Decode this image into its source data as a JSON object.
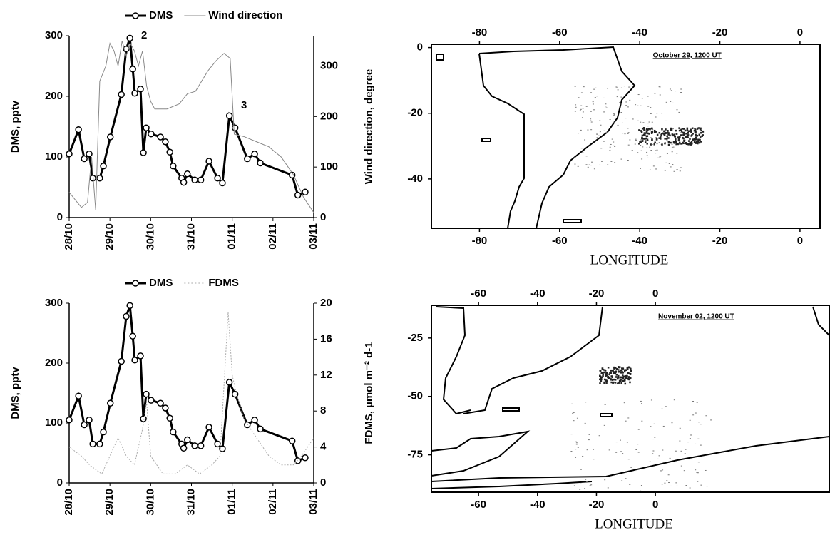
{
  "chart_data": [
    {
      "type": "line",
      "ylabel": "DMS, pptv",
      "y2label": "Wind direction, degree",
      "xlim": [
        0,
        6
      ],
      "xticks": [
        {
          "value": 0,
          "label": "28/10"
        },
        {
          "value": 1,
          "label": "29/10"
        },
        {
          "value": 2,
          "label": "30/10"
        },
        {
          "value": 3,
          "label": "31/10"
        },
        {
          "value": 4,
          "label": "01/11"
        },
        {
          "value": 5,
          "label": "02/11"
        },
        {
          "value": 6,
          "label": "03/11"
        }
      ],
      "ylim": [
        0,
        300
      ],
      "yticks": [
        0,
        100,
        200,
        300
      ],
      "y2lim": [
        0,
        360
      ],
      "y2ticks": [
        0,
        100,
        200,
        300
      ],
      "annotations": [
        "2",
        "3"
      ],
      "series": [
        {
          "name": "DMS",
          "color": "#000000",
          "markers": true,
          "x": [
            0,
            0.23,
            0.37,
            0.49,
            0.58,
            0.75,
            0.84,
            1.01,
            1.28,
            1.4,
            1.49,
            1.56,
            1.61,
            1.75,
            1.82,
            1.89,
            2.01,
            2.24,
            2.36,
            2.47,
            2.55,
            2.76,
            2.81,
            2.9,
            3.08,
            3.23,
            3.43,
            3.64,
            3.76,
            3.93,
            4.07,
            4.37,
            4.55,
            4.69,
            5.47,
            5.61,
            5.79
          ],
          "values": [
            105,
            145,
            97,
            105,
            65,
            65,
            85,
            133,
            203,
            278,
            296,
            245,
            205,
            212,
            107,
            148,
            138,
            133,
            125,
            108,
            85,
            65,
            58,
            72,
            62,
            62,
            93,
            65,
            57,
            168,
            148,
            97,
            105,
            90,
            70,
            37,
            42
          ]
        },
        {
          "name": "Wind direction",
          "color": "#888888",
          "axis": "y2",
          "markers": false,
          "x": [
            0,
            0.15,
            0.3,
            0.45,
            0.55,
            0.65,
            0.75,
            0.9,
            1.0,
            1.1,
            1.2,
            1.3,
            1.4,
            1.5,
            1.6,
            1.7,
            1.8,
            1.9,
            2.0,
            2.1,
            2.4,
            2.7,
            2.9,
            3.1,
            3.4,
            3.6,
            3.8,
            3.95,
            4.05,
            4.3,
            4.6,
            4.9,
            5.2,
            5.5,
            5.75,
            6.0
          ],
          "values": [
            50,
            35,
            20,
            30,
            120,
            15,
            270,
            300,
            345,
            330,
            300,
            350,
            320,
            345,
            330,
            300,
            330,
            260,
            230,
            215,
            215,
            225,
            245,
            250,
            290,
            310,
            325,
            315,
            165,
            160,
            150,
            140,
            120,
            85,
            40,
            10
          ]
        }
      ]
    },
    {
      "type": "line",
      "ylabel": "DMS, pptv",
      "y2label": "FDMS, µmol m⁻² d-1",
      "xlim": [
        0,
        6
      ],
      "xticks": [
        {
          "value": 0,
          "label": "28/10"
        },
        {
          "value": 1,
          "label": "29/10"
        },
        {
          "value": 2,
          "label": "30/10"
        },
        {
          "value": 3,
          "label": "31/10"
        },
        {
          "value": 4,
          "label": "01/11"
        },
        {
          "value": 5,
          "label": "02/11"
        },
        {
          "value": 6,
          "label": "03/11"
        }
      ],
      "ylim": [
        0,
        300
      ],
      "yticks": [
        0,
        100,
        200,
        300
      ],
      "y2lim": [
        0,
        20
      ],
      "y2ticks": [
        0,
        4,
        8,
        12,
        16,
        20
      ],
      "series": [
        {
          "name": "DMS",
          "color": "#000000",
          "markers": true,
          "x": [
            0,
            0.23,
            0.37,
            0.49,
            0.58,
            0.75,
            0.84,
            1.01,
            1.28,
            1.4,
            1.49,
            1.56,
            1.61,
            1.75,
            1.82,
            1.89,
            2.01,
            2.24,
            2.36,
            2.47,
            2.55,
            2.76,
            2.81,
            2.9,
            3.08,
            3.23,
            3.43,
            3.64,
            3.76,
            3.93,
            4.07,
            4.37,
            4.55,
            4.69,
            5.47,
            5.61,
            5.79
          ],
          "values": [
            105,
            145,
            97,
            105,
            65,
            65,
            85,
            133,
            203,
            278,
            296,
            245,
            205,
            212,
            107,
            148,
            138,
            133,
            125,
            108,
            85,
            65,
            58,
            72,
            62,
            62,
            93,
            65,
            57,
            168,
            148,
            97,
            105,
            90,
            70,
            37,
            42
          ]
        },
        {
          "name": "FDMS",
          "color": "#aaaaaa",
          "axis": "y2",
          "markers": false,
          "x": [
            0,
            0.3,
            0.5,
            0.8,
            1.0,
            1.2,
            1.4,
            1.6,
            1.8,
            1.9,
            2.0,
            2.3,
            2.6,
            2.9,
            3.2,
            3.5,
            3.7,
            3.9,
            4.0,
            4.1,
            4.3,
            4.6,
            4.9,
            5.2,
            5.5,
            5.7,
            6.0
          ],
          "values": [
            4,
            3,
            2,
            1,
            3,
            5,
            3,
            2,
            6,
            9,
            3,
            1,
            1,
            2,
            1,
            2,
            3,
            19,
            12,
            10,
            7,
            5,
            3,
            2,
            2,
            3,
            5
          ]
        }
      ]
    },
    {
      "type": "map",
      "annotation": "October 29, 1200 UT",
      "xlabel": "LONGITUDE",
      "xlim": [
        -92,
        5
      ],
      "xticks": [
        -80,
        -60,
        -40,
        -20,
        0
      ],
      "ylim": [
        -55,
        1
      ],
      "yticks": [
        0,
        -20,
        -40
      ]
    },
    {
      "type": "map",
      "annotation": "November 02, 1200 UT",
      "xlabel": "LONGITUDE",
      "xlim": [
        -76,
        59
      ],
      "xticks": [
        -60,
        -40,
        -20,
        0
      ],
      "ylim": [
        -91,
        -11
      ],
      "yticks": [
        -25,
        -50,
        -75
      ]
    }
  ]
}
